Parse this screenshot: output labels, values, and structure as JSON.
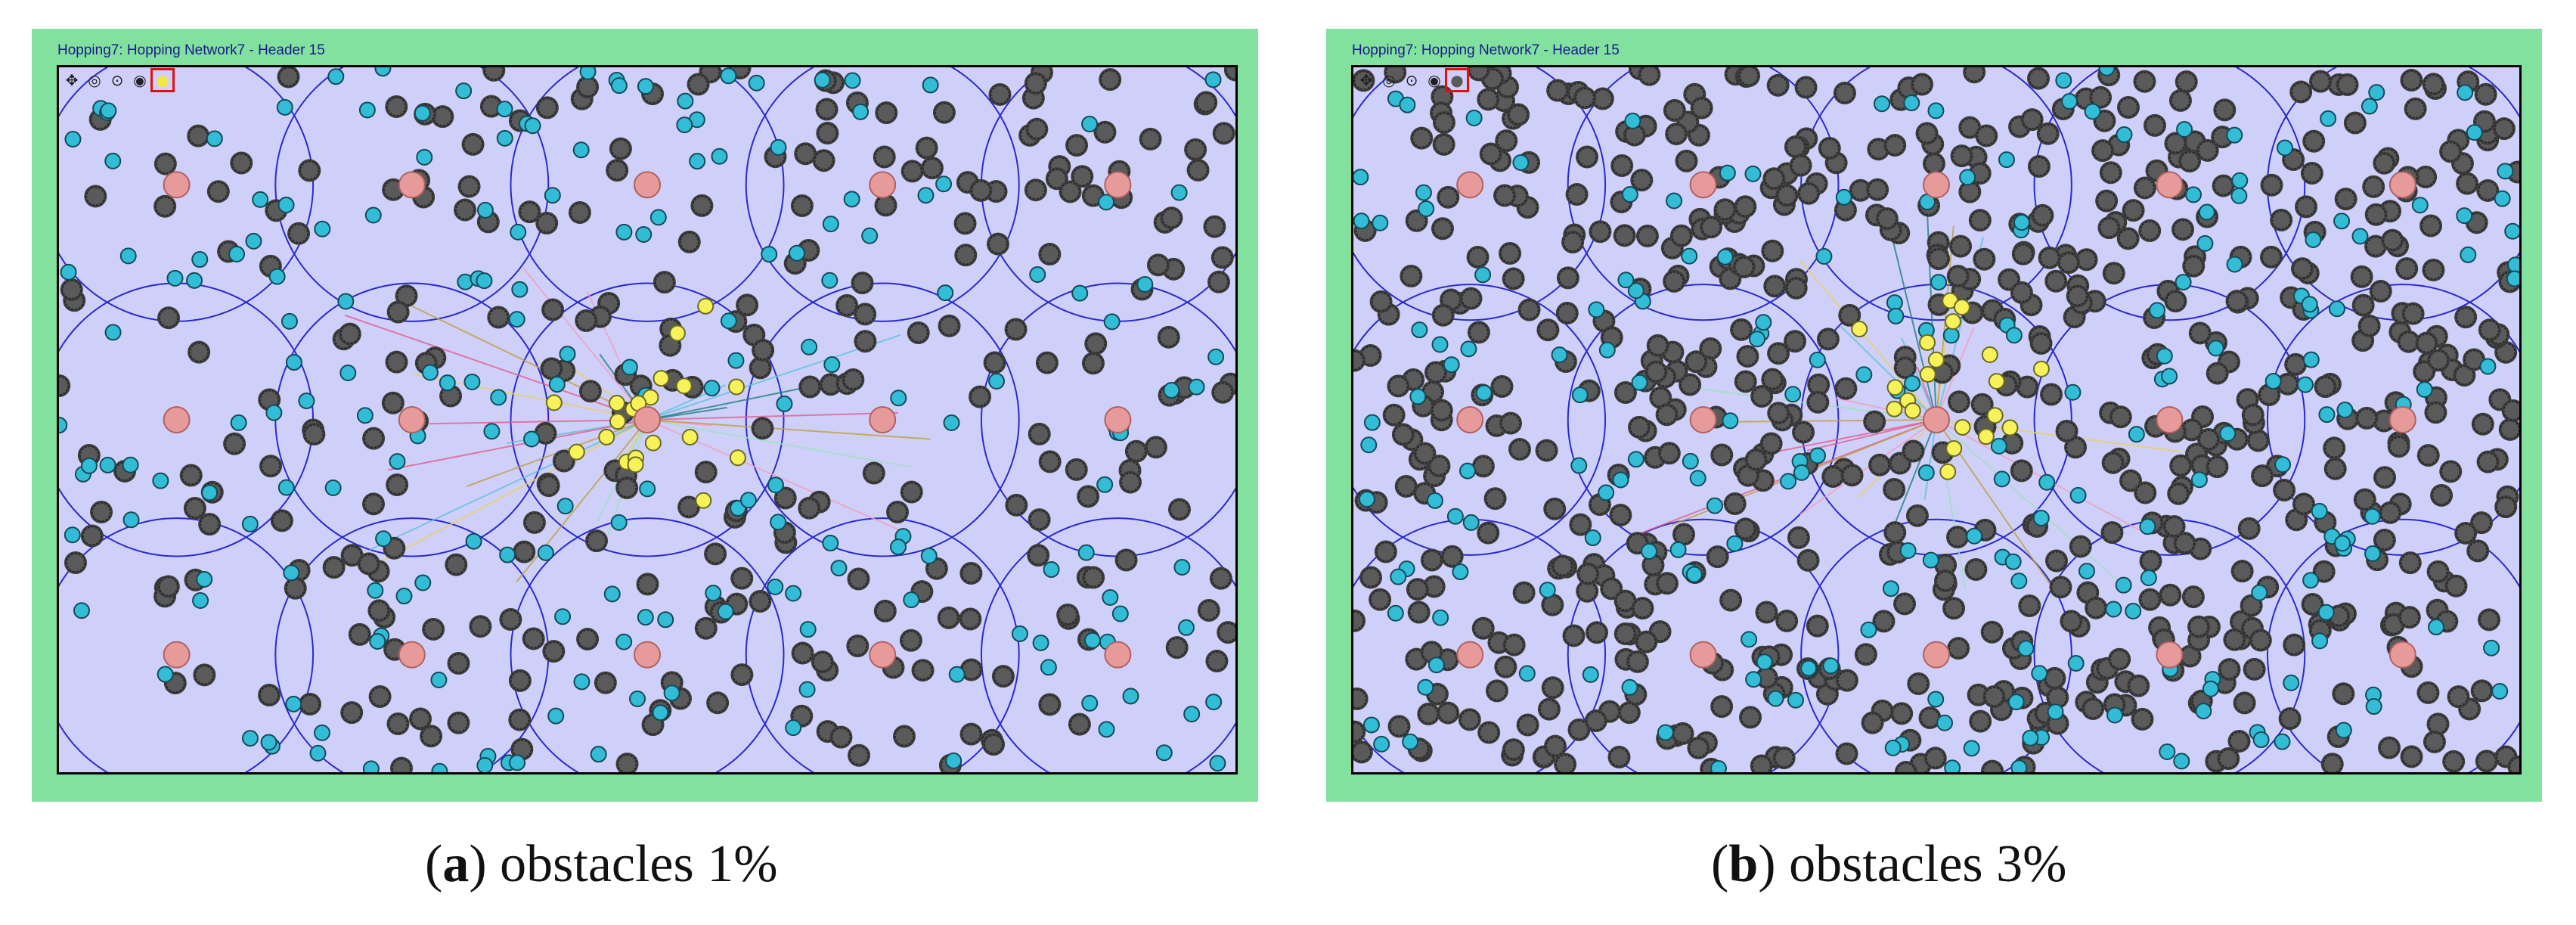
{
  "panels": [
    {
      "id": "a",
      "window_title": "Hopping7: Hopping Network7 - Header 15",
      "caption_letter": "a",
      "caption_text": "obstacles 1%",
      "obstacle_count": 300,
      "sensor_count": 200,
      "toolbar": [
        "pointer-tool",
        "node-tool",
        "edit-tool",
        "zoom-tool",
        "active-tool"
      ]
    },
    {
      "id": "b",
      "window_title": "Hopping7: Hopping Network7 - Header 15",
      "caption_letter": "b",
      "caption_text": "obstacles 3%",
      "obstacle_count": 720,
      "sensor_count": 220,
      "toolbar": [
        "pointer-tool",
        "node-tool",
        "edit-tool",
        "zoom-tool",
        "active-tool"
      ]
    }
  ],
  "colors": {
    "background": "#82e19e",
    "field": "#cfd0fa",
    "cluster_ring": "#2a2ad0",
    "cluster_head": "#e69a9a",
    "sensor": "#33bcd6",
    "active_sensor": "#f7f25a",
    "obstacle": "#5a5a5a"
  }
}
